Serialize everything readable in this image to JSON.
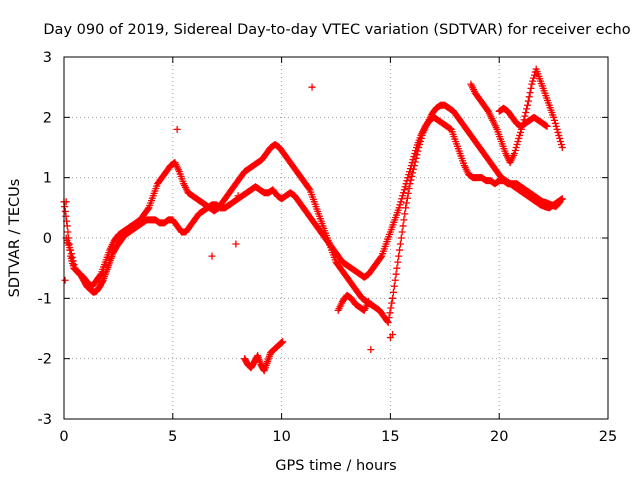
{
  "chart_data": {
    "type": "scatter",
    "title": "Day 090 of 2019, Sidereal Day-to-day VTEC variation (SDTVAR) for receiver echo",
    "xlabel": "GPS time / hours",
    "ylabel": "SDTVAR / TECUs",
    "xlim": [
      0,
      25
    ],
    "ylim": [
      -3,
      3
    ],
    "xticks": [
      0,
      5,
      10,
      15,
      20,
      25
    ],
    "yticks": [
      -3,
      -2,
      -1,
      0,
      1,
      2,
      3
    ],
    "grid": true,
    "legend": "none",
    "marker": "+",
    "series_color": "#ff0000",
    "series": [
      {
        "name": "main-trace-a",
        "x": [
          0.0,
          0.15,
          0.3,
          0.45,
          0.6,
          0.75,
          0.9,
          1.05,
          1.2,
          1.35,
          1.5,
          1.65,
          1.8,
          1.95,
          2.1,
          2.25,
          2.4,
          2.6,
          2.8,
          3.0,
          3.2,
          3.4,
          3.6,
          3.8,
          4.0,
          4.2,
          4.4,
          4.6,
          4.8,
          5.0,
          5.2,
          5.4,
          5.6,
          5.8,
          6.0,
          6.2,
          6.4,
          6.6,
          6.8,
          7.0,
          7.2,
          7.4,
          7.6,
          7.8,
          8.0,
          8.2,
          8.4,
          8.6,
          8.8,
          9.0,
          9.2,
          9.4,
          9.6,
          9.8,
          10.0,
          10.2,
          10.4,
          10.6,
          10.8,
          11.0,
          11.2,
          11.4,
          11.6,
          11.8,
          12.0,
          12.2,
          12.4,
          12.6,
          12.8,
          13.0,
          13.2,
          13.4,
          13.6,
          13.8,
          14.0,
          14.2,
          14.4,
          14.6,
          14.8,
          15.0,
          15.2,
          15.4,
          15.6,
          15.8,
          16.0,
          16.2,
          16.4,
          16.6,
          16.8,
          17.0,
          17.2,
          17.4,
          17.6,
          17.8,
          18.0,
          18.2,
          18.4,
          18.6,
          18.8,
          19.0,
          19.2,
          19.4,
          19.6,
          19.8,
          20.0,
          20.2,
          20.4,
          20.6,
          20.8,
          21.0,
          21.2,
          21.4,
          21.6,
          21.8,
          22.0,
          22.2,
          22.4,
          22.6,
          22.8
        ],
        "y": [
          0.6,
          0.2,
          -0.3,
          -0.5,
          -0.55,
          -0.6,
          -0.7,
          -0.8,
          -0.85,
          -0.9,
          -0.88,
          -0.8,
          -0.7,
          -0.55,
          -0.4,
          -0.25,
          -0.15,
          -0.05,
          0.05,
          0.1,
          0.15,
          0.2,
          0.25,
          0.3,
          0.3,
          0.3,
          0.25,
          0.25,
          0.3,
          0.3,
          0.2,
          0.1,
          0.1,
          0.2,
          0.3,
          0.4,
          0.45,
          0.5,
          0.55,
          0.55,
          0.5,
          0.5,
          0.55,
          0.6,
          0.65,
          0.7,
          0.75,
          0.8,
          0.85,
          0.8,
          0.75,
          0.75,
          0.8,
          0.7,
          0.65,
          0.7,
          0.75,
          0.7,
          0.6,
          0.5,
          0.4,
          0.3,
          0.2,
          0.1,
          0.0,
          -0.1,
          -0.2,
          -0.3,
          -0.4,
          -0.45,
          -0.5,
          -0.55,
          -0.6,
          -0.65,
          -0.6,
          -0.5,
          -0.4,
          -0.3,
          -0.1,
          0.1,
          0.3,
          0.5,
          0.75,
          1.0,
          1.25,
          1.5,
          1.7,
          1.85,
          1.95,
          2.0,
          1.95,
          1.9,
          1.85,
          1.8,
          1.6,
          1.4,
          1.2,
          1.05,
          1.0,
          1.0,
          1.0,
          0.95,
          0.95,
          0.9,
          0.95,
          0.95,
          0.9,
          0.9,
          0.9,
          0.85,
          0.8,
          0.75,
          0.7,
          0.65,
          0.6,
          0.58,
          0.55,
          0.52,
          0.6
        ]
      },
      {
        "name": "main-trace-b",
        "x": [
          0.1,
          0.3,
          0.5,
          0.7,
          0.9,
          1.1,
          1.3,
          1.5,
          1.7,
          1.9,
          2.1,
          2.3,
          2.5,
          2.7,
          2.9,
          3.1,
          3.3,
          3.5,
          3.7,
          3.9,
          4.1,
          4.3,
          4.5,
          4.7,
          4.9,
          5.1,
          5.3,
          5.5,
          5.7,
          5.9,
          6.1,
          6.3,
          6.5,
          6.7,
          6.9,
          7.1,
          7.3,
          7.5,
          7.7,
          7.9,
          8.1,
          8.3,
          8.5,
          8.7,
          8.9,
          9.1,
          9.3,
          9.5,
          9.7,
          9.9,
          10.1,
          10.3,
          10.5,
          10.7,
          10.9,
          11.1,
          11.3,
          11.5,
          11.7,
          11.9,
          12.1,
          12.3,
          12.5,
          12.7,
          12.9,
          13.1,
          13.3,
          13.5,
          13.7,
          13.9,
          14.1,
          14.3,
          14.5,
          14.7,
          14.9,
          15.1,
          15.3,
          15.5,
          15.7,
          15.9,
          16.1,
          16.3,
          16.5,
          16.7,
          16.9,
          17.1,
          17.3,
          17.5,
          17.7,
          17.9,
          18.1,
          18.3,
          18.5,
          18.7,
          18.9,
          19.1,
          19.3,
          19.5,
          19.7,
          19.9,
          20.1,
          20.3,
          20.5,
          20.7,
          20.9,
          21.1,
          21.3,
          21.5,
          21.7,
          21.9,
          22.1,
          22.3,
          22.5,
          22.7,
          22.9
        ],
        "y": [
          0.0,
          -0.2,
          -0.5,
          -0.6,
          -0.65,
          -0.75,
          -0.8,
          -0.7,
          -0.6,
          -0.4,
          -0.2,
          -0.05,
          0.05,
          0.1,
          0.15,
          0.2,
          0.25,
          0.3,
          0.4,
          0.5,
          0.7,
          0.9,
          1.0,
          1.1,
          1.2,
          1.25,
          1.1,
          0.9,
          0.75,
          0.7,
          0.65,
          0.6,
          0.55,
          0.5,
          0.45,
          0.5,
          0.6,
          0.7,
          0.8,
          0.9,
          1.0,
          1.1,
          1.15,
          1.2,
          1.25,
          1.3,
          1.4,
          1.5,
          1.55,
          1.5,
          1.4,
          1.3,
          1.2,
          1.1,
          1.0,
          0.9,
          0.8,
          0.6,
          0.4,
          0.2,
          0.0,
          -0.2,
          -0.4,
          -0.5,
          -0.6,
          -0.7,
          -0.8,
          -0.9,
          -1.0,
          -1.05,
          -1.1,
          -1.15,
          -1.2,
          -1.3,
          -1.4,
          -1.0,
          -0.5,
          0.0,
          0.5,
          0.9,
          1.2,
          1.5,
          1.75,
          1.9,
          2.05,
          2.15,
          2.2,
          2.2,
          2.15,
          2.1,
          2.0,
          1.9,
          1.8,
          1.7,
          1.6,
          1.5,
          1.4,
          1.3,
          1.2,
          1.1,
          1.0,
          0.95,
          0.9,
          0.85,
          0.8,
          0.75,
          0.7,
          0.65,
          0.6,
          0.55,
          0.52,
          0.5,
          0.55,
          0.6,
          0.65
        ]
      },
      {
        "name": "late-upper-arc",
        "x": [
          18.7,
          18.9,
          19.1,
          19.3,
          19.5,
          19.7,
          19.9,
          20.1,
          20.3,
          20.5,
          20.7,
          20.9,
          21.1,
          21.3,
          21.5,
          21.7,
          21.9,
          22.1,
          22.3,
          22.5,
          22.7,
          22.9
        ],
        "y": [
          2.55,
          2.4,
          2.3,
          2.2,
          2.1,
          1.95,
          1.8,
          1.6,
          1.4,
          1.25,
          1.4,
          1.65,
          1.9,
          2.2,
          2.55,
          2.8,
          2.6,
          2.4,
          2.2,
          2.0,
          1.75,
          1.5
        ]
      },
      {
        "name": "ridge-upper",
        "x": [
          20.0,
          20.2,
          20.4,
          20.6,
          20.8,
          21.0,
          21.2,
          21.4,
          21.6,
          21.8,
          22.0,
          22.2
        ],
        "y": [
          2.1,
          2.15,
          2.1,
          2.0,
          1.9,
          1.85,
          1.9,
          1.95,
          2.0,
          1.95,
          1.9,
          1.85
        ]
      },
      {
        "name": "low-hump",
        "x": [
          8.3,
          8.45,
          8.6,
          8.75,
          8.9,
          9.05,
          9.2,
          9.35,
          9.5,
          9.65,
          9.8,
          9.95,
          10.05
        ],
        "y": [
          -2.0,
          -2.1,
          -2.15,
          -2.05,
          -1.95,
          -2.1,
          -2.2,
          -2.05,
          -1.9,
          -1.85,
          -1.8,
          -1.75,
          -1.72
        ]
      },
      {
        "name": "low-segment",
        "x": [
          12.6,
          12.8,
          13.0,
          13.2,
          13.4,
          13.6,
          13.8,
          14.0
        ],
        "y": [
          -1.2,
          -1.05,
          -0.95,
          -1.0,
          -1.1,
          -1.15,
          -1.2,
          -1.05
        ]
      },
      {
        "name": "outliers",
        "x": [
          0.05,
          0.1,
          5.2,
          11.4,
          14.1,
          15.0,
          15.1,
          8.0,
          6.8,
          7.9
        ],
        "y": [
          -0.7,
          0.6,
          1.8,
          2.5,
          -1.85,
          -1.65,
          -1.6,
          0.7,
          -0.3,
          -0.1
        ]
      }
    ]
  }
}
